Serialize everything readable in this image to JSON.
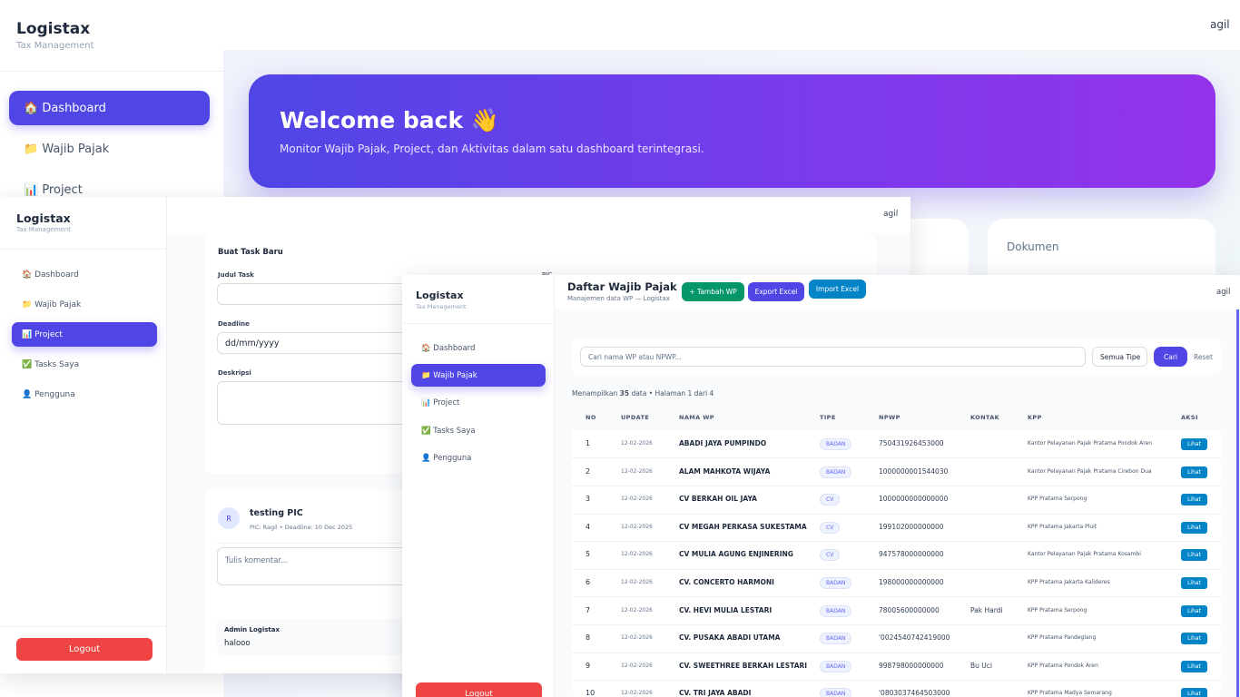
{
  "back": {
    "brand": {
      "title": "Logistax",
      "subtitle": "Tax Management"
    },
    "nav": [
      "🏠 Dashboard",
      "📁 Wajib Pajak",
      "📊 Project"
    ],
    "user": "agil",
    "banner": {
      "title": "Welcome back 👋",
      "subtitle": "Monitor Wajib Pajak, Project, dan Aktivitas dalam satu dashboard terintegrasi."
    },
    "card": "Dokumen"
  },
  "task": {
    "brand": {
      "title": "Logistax",
      "subtitle": "Tax Management"
    },
    "nav": [
      "🏠 Dashboard",
      "📁 Wajib Pajak",
      "📊 Project",
      "✅ Tasks Saya",
      "👤 Pengguna"
    ],
    "logout": "Logout",
    "user": "agil",
    "form": {
      "title": "Buat Task Baru",
      "judul": "Judul Task",
      "pic": "PIC",
      "deadline": "Deadline",
      "deadline_placeholder": "dd/mm/yyyy",
      "deskripsi": "Deskripsi"
    },
    "comment": {
      "avatar": "R",
      "title": "testing PIC",
      "meta": "PIC: Ragil • Deadline: 10 Dec 2025",
      "placeholder": "Tulis komentar...",
      "items": [
        {
          "author": "Admin Logistax",
          "text": "halooo"
        }
      ]
    }
  },
  "wp": {
    "brand": {
      "title": "Logistax",
      "subtitle": "Tax Management"
    },
    "nav": [
      "🏠 Dashboard",
      "📁 Wajib Pajak",
      "📊 Project",
      "✅ Tasks Saya",
      "👤 Pengguna"
    ],
    "logout": "Logout",
    "user": "agil",
    "header": {
      "title": "Daftar Wajib Pajak",
      "subtitle": "Manajemen data WP — Logistax"
    },
    "buttons": {
      "add": "+ Tambah WP",
      "export": "Export Excel",
      "import": "Import Excel"
    },
    "search": {
      "placeholder": "Cari nama WP atau NPWP...",
      "select": "Semua Tipe",
      "submit": "Cari",
      "reset": "Reset"
    },
    "info": {
      "prefix": "Menampilkan",
      "count": 35,
      "suffix": "data • Halaman 1 dari 4"
    },
    "table": {
      "columns": [
        "NO",
        "UPDATE",
        "NAMA WP",
        "TIPE",
        "NPWP",
        "KONTAK",
        "KPP",
        "AKSI"
      ],
      "action": "Lihat",
      "rows": [
        [
          1,
          "12-02-2026",
          "ABADI JAYA PUMPINDO",
          "BADAN",
          "750431926453000",
          null,
          "Kantor Pelayanan Pajak Pratama Pondok Aren"
        ],
        [
          2,
          "12-02-2026",
          "ALAM MAHKOTA WIJAYA",
          "BADAN",
          "1000000001544030",
          null,
          "Kantor Pelayanan Pajak Pratama Cirebon Dua"
        ],
        [
          3,
          "12-02-2026",
          "CV BERKAH OIL JAYA",
          "CV",
          "1000000000000000",
          null,
          "KPP Pratama Serpong"
        ],
        [
          4,
          "12-02-2026",
          "CV MEGAH PERKASA SUKESTAMA",
          "CV",
          "199102000000000",
          null,
          "KPP Pratama Jakarta Pluit"
        ],
        [
          5,
          "12-02-2026",
          "CV MULIA AGUNG ENJINERING",
          "CV",
          "947578000000000",
          null,
          "Kantor Pelayanan Pajak Pratama Kosambi"
        ],
        [
          6,
          "12-02-2026",
          "CV. CONCERTO HARMONI",
          "BADAN",
          "198000000000000",
          null,
          "KPP Pratama Jakarta Kalideres"
        ],
        [
          7,
          "12-02-2026",
          "CV. HEVI MULIA LESTARI",
          "BADAN",
          "78005600000000",
          "Pak Hardi",
          "KPP Pratama Serpong"
        ],
        [
          8,
          "12-02-2026",
          "CV. PUSAKA ABADI UTAMA",
          "BADAN",
          "'0024540742419000",
          null,
          "KPP Pratama Pandeglang"
        ],
        [
          9,
          "12-02-2026",
          "CV. SWEETHREE BERKAH LESTARI",
          "BADAN",
          "998798000000000",
          "Bu Uci",
          "KPP Pratama Pondok Aren"
        ],
        [
          10,
          "12-02-2026",
          "CV. TRI JAYA ABADI",
          "BADAN",
          "'0803037464503000",
          null,
          "KPP Pratama Madya Semarang"
        ]
      ]
    }
  }
}
